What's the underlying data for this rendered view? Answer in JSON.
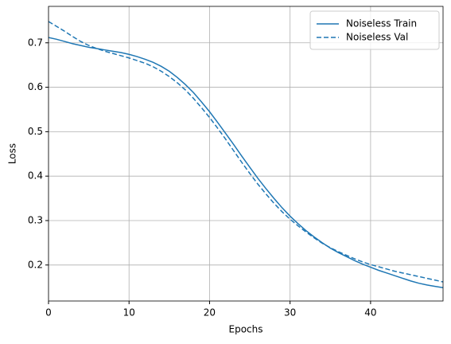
{
  "chart_data": {
    "type": "line",
    "xlabel": "Epochs",
    "ylabel": "Loss",
    "x": [
      0,
      1,
      2,
      3,
      4,
      5,
      6,
      7,
      8,
      9,
      10,
      11,
      12,
      13,
      14,
      15,
      16,
      17,
      18,
      19,
      20,
      21,
      22,
      23,
      24,
      25,
      26,
      27,
      28,
      29,
      30,
      31,
      32,
      33,
      34,
      35,
      36,
      37,
      38,
      39,
      40,
      41,
      42,
      43,
      44,
      45,
      46,
      47,
      48,
      49
    ],
    "series": [
      {
        "name": "Noiseless Train",
        "color": "#1f77b4",
        "linestyle": "solid",
        "values": [
          0.712,
          0.708,
          0.703,
          0.698,
          0.694,
          0.69,
          0.687,
          0.684,
          0.681,
          0.678,
          0.674,
          0.669,
          0.663,
          0.656,
          0.647,
          0.636,
          0.622,
          0.606,
          0.588,
          0.567,
          0.545,
          0.521,
          0.496,
          0.471,
          0.445,
          0.42,
          0.395,
          0.372,
          0.35,
          0.329,
          0.31,
          0.293,
          0.277,
          0.263,
          0.25,
          0.238,
          0.228,
          0.219,
          0.21,
          0.202,
          0.195,
          0.188,
          0.182,
          0.176,
          0.17,
          0.164,
          0.159,
          0.155,
          0.152,
          0.149
        ]
      },
      {
        "name": "Noiseless Val",
        "color": "#1f77b4",
        "linestyle": "dashed",
        "values": [
          0.748,
          0.737,
          0.726,
          0.714,
          0.703,
          0.694,
          0.687,
          0.681,
          0.676,
          0.671,
          0.666,
          0.66,
          0.654,
          0.646,
          0.636,
          0.624,
          0.61,
          0.594,
          0.575,
          0.554,
          0.532,
          0.508,
          0.483,
          0.457,
          0.431,
          0.406,
          0.382,
          0.36,
          0.339,
          0.32,
          0.303,
          0.288,
          0.274,
          0.261,
          0.249,
          0.239,
          0.23,
          0.222,
          0.214,
          0.207,
          0.201,
          0.196,
          0.191,
          0.186,
          0.182,
          0.178,
          0.174,
          0.17,
          0.166,
          0.162
        ]
      }
    ],
    "xlim": [
      0,
      49
    ],
    "ylim": [
      0.119,
      0.782
    ],
    "xticks": [
      0,
      10,
      20,
      30,
      40
    ],
    "yticks": [
      0.2,
      0.3,
      0.4,
      0.5,
      0.6,
      0.7
    ],
    "grid": true,
    "legend": "upper right"
  }
}
